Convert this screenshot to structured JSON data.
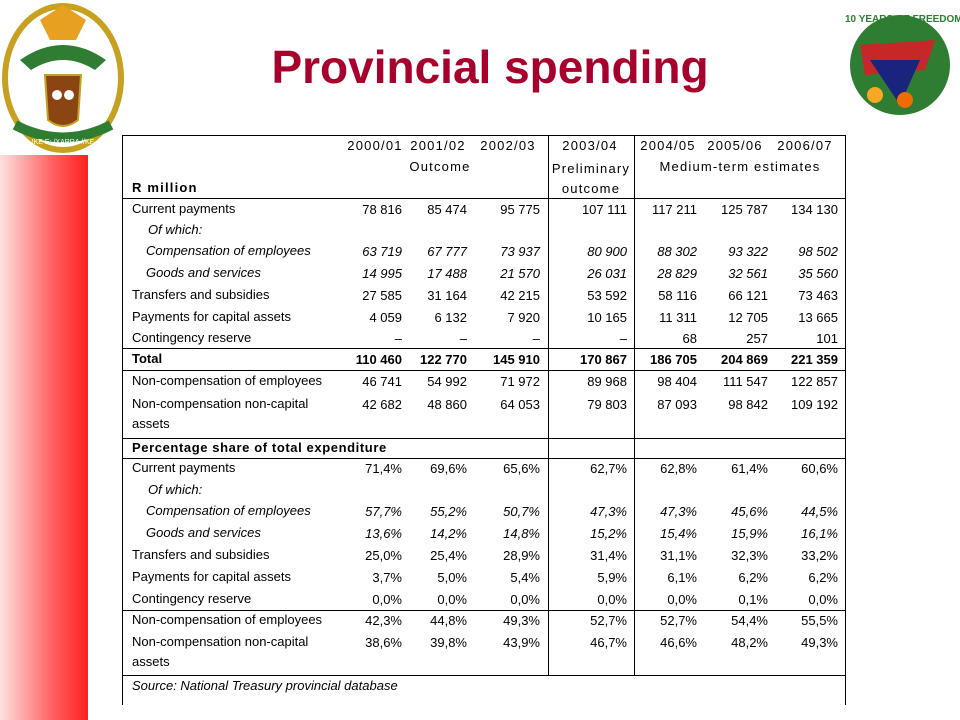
{
  "header": {
    "title": "Provincial spending",
    "left_logo_motto": "!KE E: /XARRA //KE",
    "right_logo_text": "10 YEARS OF FREEDOM"
  },
  "table": {
    "unit": "R million",
    "years": [
      "2000/01",
      "2001/02",
      "2002/03",
      "2003/04",
      "2004/05",
      "2005/06",
      "2006/07"
    ],
    "groups": [
      "Outcome",
      "Preliminary outcome",
      "Medium-term estimates"
    ],
    "rows": [
      {
        "label": "Current payments",
        "values": [
          "78 816",
          "85 474",
          "95 775",
          "107 111",
          "117 211",
          "125 787",
          "134 130"
        ]
      },
      {
        "label": "Of which:"
      },
      {
        "label": "Compensation of employees",
        "values": [
          "63 719",
          "67 777",
          "73 937",
          "80 900",
          "88 302",
          "93 322",
          "98 502"
        ]
      },
      {
        "label": "Goods and services",
        "values": [
          "14 995",
          "17 488",
          "21 570",
          "26 031",
          "28 829",
          "32 561",
          "35 560"
        ]
      },
      {
        "label": "Transfers and subsidies",
        "values": [
          "27 585",
          "31 164",
          "42 215",
          "53 592",
          "58 116",
          "66 121",
          "73 463"
        ]
      },
      {
        "label": "Payments for capital assets",
        "values": [
          "4 059",
          "6 132",
          "7 920",
          "10 165",
          "11 311",
          "12 705",
          "13 665"
        ]
      },
      {
        "label": "Contingency reserve",
        "values": [
          "–",
          "–",
          "–",
          "–",
          "68",
          "257",
          "101"
        ]
      },
      {
        "label": "Total",
        "values": [
          "110 460",
          "122 770",
          "145 910",
          "170 867",
          "186 705",
          "204 869",
          "221 359"
        ]
      },
      {
        "label": "Non-compensation of employees",
        "values": [
          "46 741",
          "54 992",
          "71 972",
          "89 968",
          "98 404",
          "111 547",
          "122 857"
        ]
      },
      {
        "label": "Non-compensation non-capital assets",
        "values": [
          "42 682",
          "48 860",
          "64 053",
          "79 803",
          "87 093",
          "98 842",
          "109 192"
        ]
      }
    ],
    "share_title": "Percentage share of total expenditure",
    "share_rows": [
      {
        "label": "Current payments",
        "values": [
          "71,4%",
          "69,6%",
          "65,6%",
          "62,7%",
          "62,8%",
          "61,4%",
          "60,6%"
        ]
      },
      {
        "label": "Of which:"
      },
      {
        "label": "Compensation of employees",
        "values": [
          "57,7%",
          "55,2%",
          "50,7%",
          "47,3%",
          "47,3%",
          "45,6%",
          "44,5%"
        ]
      },
      {
        "label": "Goods and services",
        "values": [
          "13,6%",
          "14,2%",
          "14,8%",
          "15,2%",
          "15,4%",
          "15,9%",
          "16,1%"
        ]
      },
      {
        "label": "Transfers and subsidies",
        "values": [
          "25,0%",
          "25,4%",
          "28,9%",
          "31,4%",
          "31,1%",
          "32,3%",
          "33,2%"
        ]
      },
      {
        "label": "Payments for capital assets",
        "values": [
          "3,7%",
          "5,0%",
          "5,4%",
          "5,9%",
          "6,1%",
          "6,2%",
          "6,2%"
        ]
      },
      {
        "label": "Contingency reserve",
        "values": [
          "0,0%",
          "0,0%",
          "0,0%",
          "0,0%",
          "0,0%",
          "0,1%",
          "0,0%"
        ]
      },
      {
        "label": "Non-compensation of employees",
        "values": [
          "42,3%",
          "44,8%",
          "49,3%",
          "52,7%",
          "52,7%",
          "54,4%",
          "55,5%"
        ]
      },
      {
        "label": "Non-compensation non-capital assets",
        "values": [
          "38,6%",
          "39,8%",
          "43,9%",
          "46,7%",
          "46,6%",
          "48,2%",
          "49,3%"
        ]
      }
    ],
    "source": "Source: National Treasury provincial database"
  }
}
